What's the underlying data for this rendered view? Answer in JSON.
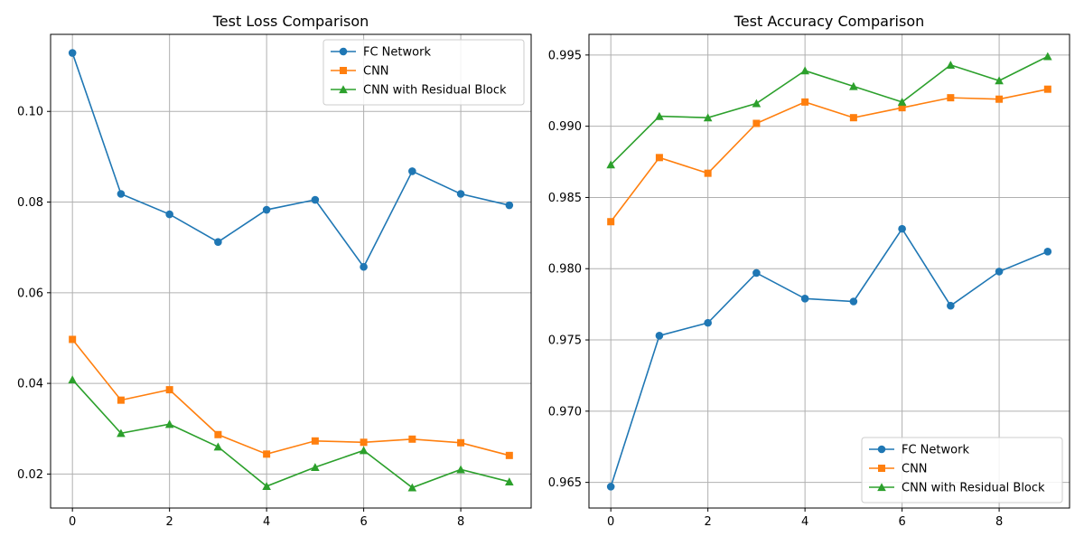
{
  "chart_data": [
    {
      "type": "line",
      "title": "Test Loss Comparison",
      "xlabel": "",
      "ylabel": "",
      "x": [
        0,
        1,
        2,
        3,
        4,
        5,
        6,
        7,
        8,
        9
      ],
      "xlim": [
        -0.45,
        9.45
      ],
      "ylim": [
        0.0125,
        0.117
      ],
      "xticks": [
        0,
        2,
        4,
        6,
        8
      ],
      "yticks": [
        0.02,
        0.04,
        0.06,
        0.08,
        0.1
      ],
      "xtick_labels": [
        "0",
        "2",
        "4",
        "6",
        "8"
      ],
      "ytick_labels": [
        "0.02",
        "0.04",
        "0.06",
        "0.08",
        "0.10"
      ],
      "grid": true,
      "legend": "upper-right",
      "series": [
        {
          "name": "FC Network",
          "color": "#1f77b4",
          "marker": "circle",
          "values": [
            0.1129,
            0.0818,
            0.0773,
            0.0712,
            0.0783,
            0.0805,
            0.0657,
            0.0868,
            0.0818,
            0.0793
          ]
        },
        {
          "name": "CNN",
          "color": "#ff7f0e",
          "marker": "square",
          "values": [
            0.0497,
            0.0363,
            0.0386,
            0.0287,
            0.0244,
            0.0273,
            0.027,
            0.0277,
            0.0269,
            0.0241
          ]
        },
        {
          "name": "CNN with Residual Block",
          "color": "#2ca02c",
          "marker": "triangle",
          "values": [
            0.0408,
            0.029,
            0.031,
            0.026,
            0.0173,
            0.0215,
            0.0252,
            0.017,
            0.021,
            0.0183
          ]
        }
      ]
    },
    {
      "type": "line",
      "title": "Test Accuracy Comparison",
      "xlabel": "",
      "ylabel": "",
      "x": [
        0,
        1,
        2,
        3,
        4,
        5,
        6,
        7,
        8,
        9
      ],
      "xlim": [
        -0.45,
        9.45
      ],
      "ylim": [
        0.9632,
        0.99645
      ],
      "xticks": [
        0,
        2,
        4,
        6,
        8
      ],
      "yticks": [
        0.965,
        0.97,
        0.975,
        0.98,
        0.985,
        0.99,
        0.995
      ],
      "xtick_labels": [
        "0",
        "2",
        "4",
        "6",
        "8"
      ],
      "ytick_labels": [
        "0.965",
        "0.970",
        "0.975",
        "0.980",
        "0.985",
        "0.990",
        "0.995"
      ],
      "grid": true,
      "legend": "lower-right",
      "series": [
        {
          "name": "FC Network",
          "color": "#1f77b4",
          "marker": "circle",
          "values": [
            0.9647,
            0.9753,
            0.9762,
            0.9797,
            0.9779,
            0.9777,
            0.9828,
            0.9774,
            0.9798,
            0.9812
          ]
        },
        {
          "name": "CNN",
          "color": "#ff7f0e",
          "marker": "square",
          "values": [
            0.9833,
            0.9878,
            0.9867,
            0.9902,
            0.9917,
            0.9906,
            0.9913,
            0.992,
            0.9919,
            0.9926
          ]
        },
        {
          "name": "CNN with Residual Block",
          "color": "#2ca02c",
          "marker": "triangle",
          "values": [
            0.9873,
            0.9907,
            0.9906,
            0.9916,
            0.9939,
            0.9928,
            0.9917,
            0.9943,
            0.9932,
            0.9949
          ]
        }
      ]
    }
  ]
}
